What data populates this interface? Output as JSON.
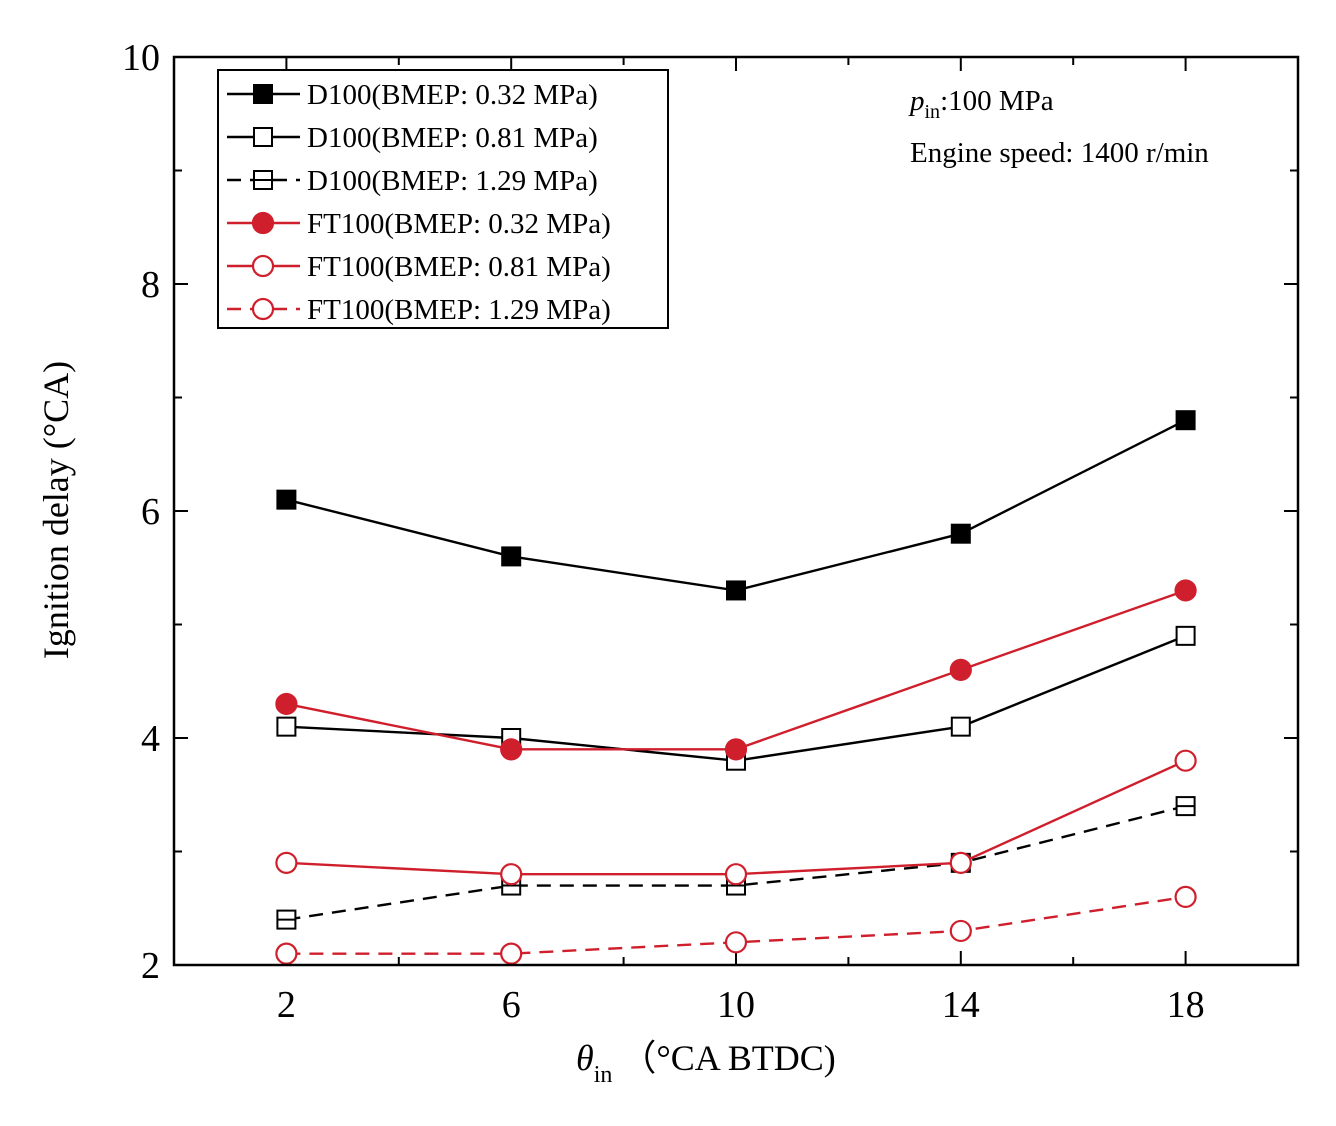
{
  "chart_data": {
    "type": "line",
    "x": [
      2,
      6,
      10,
      14,
      18
    ],
    "xlim": [
      0,
      20
    ],
    "ylim": [
      2,
      10
    ],
    "xticks": [
      2,
      6,
      10,
      14,
      18
    ],
    "yticks": [
      2,
      4,
      6,
      8,
      10
    ],
    "xlabel": {
      "symbol": "θ",
      "subscript": "in",
      "unit": "（°CA BTDC)"
    },
    "ylabel": "Ignition delay (°CA)",
    "legend_position": "top-left",
    "annotations": {
      "pressure_symbol": "p",
      "pressure_subscript": "in",
      "pressure_value": ":100 MPa",
      "engine_speed": "Engine speed: 1400 r/min"
    },
    "series": [
      {
        "name": "D100(BMEP: 0.32 MPa)",
        "color": "#000000",
        "marker": "square",
        "filled": true,
        "dashed": false,
        "values": [
          6.1,
          5.6,
          5.3,
          5.8,
          6.8
        ]
      },
      {
        "name": "D100(BMEP: 0.81 MPa)",
        "color": "#000000",
        "marker": "square",
        "filled": false,
        "dashed": false,
        "values": [
          4.1,
          4.0,
          3.8,
          4.1,
          4.9
        ]
      },
      {
        "name": "D100(BMEP: 1.29 MPa)",
        "color": "#000000",
        "marker": "square-half",
        "filled": false,
        "dashed": true,
        "values": [
          2.4,
          2.7,
          2.7,
          2.9,
          3.4
        ]
      },
      {
        "name": "FT100(BMEP: 0.32 MPa)",
        "color": "#d01f2c",
        "marker": "circle",
        "filled": true,
        "dashed": false,
        "values": [
          4.3,
          3.9,
          3.9,
          4.6,
          5.3
        ]
      },
      {
        "name": "FT100(BMEP: 0.81 MPa)",
        "color": "#d01f2c",
        "marker": "circle",
        "filled": false,
        "dashed": false,
        "values": [
          2.9,
          2.8,
          2.8,
          2.9,
          3.8
        ]
      },
      {
        "name": "FT100(BMEP: 1.29 MPa)",
        "color": "#d01f2c",
        "marker": "circle",
        "filled": false,
        "dashed": true,
        "values": [
          2.1,
          2.1,
          2.2,
          2.3,
          2.6
        ]
      }
    ]
  }
}
